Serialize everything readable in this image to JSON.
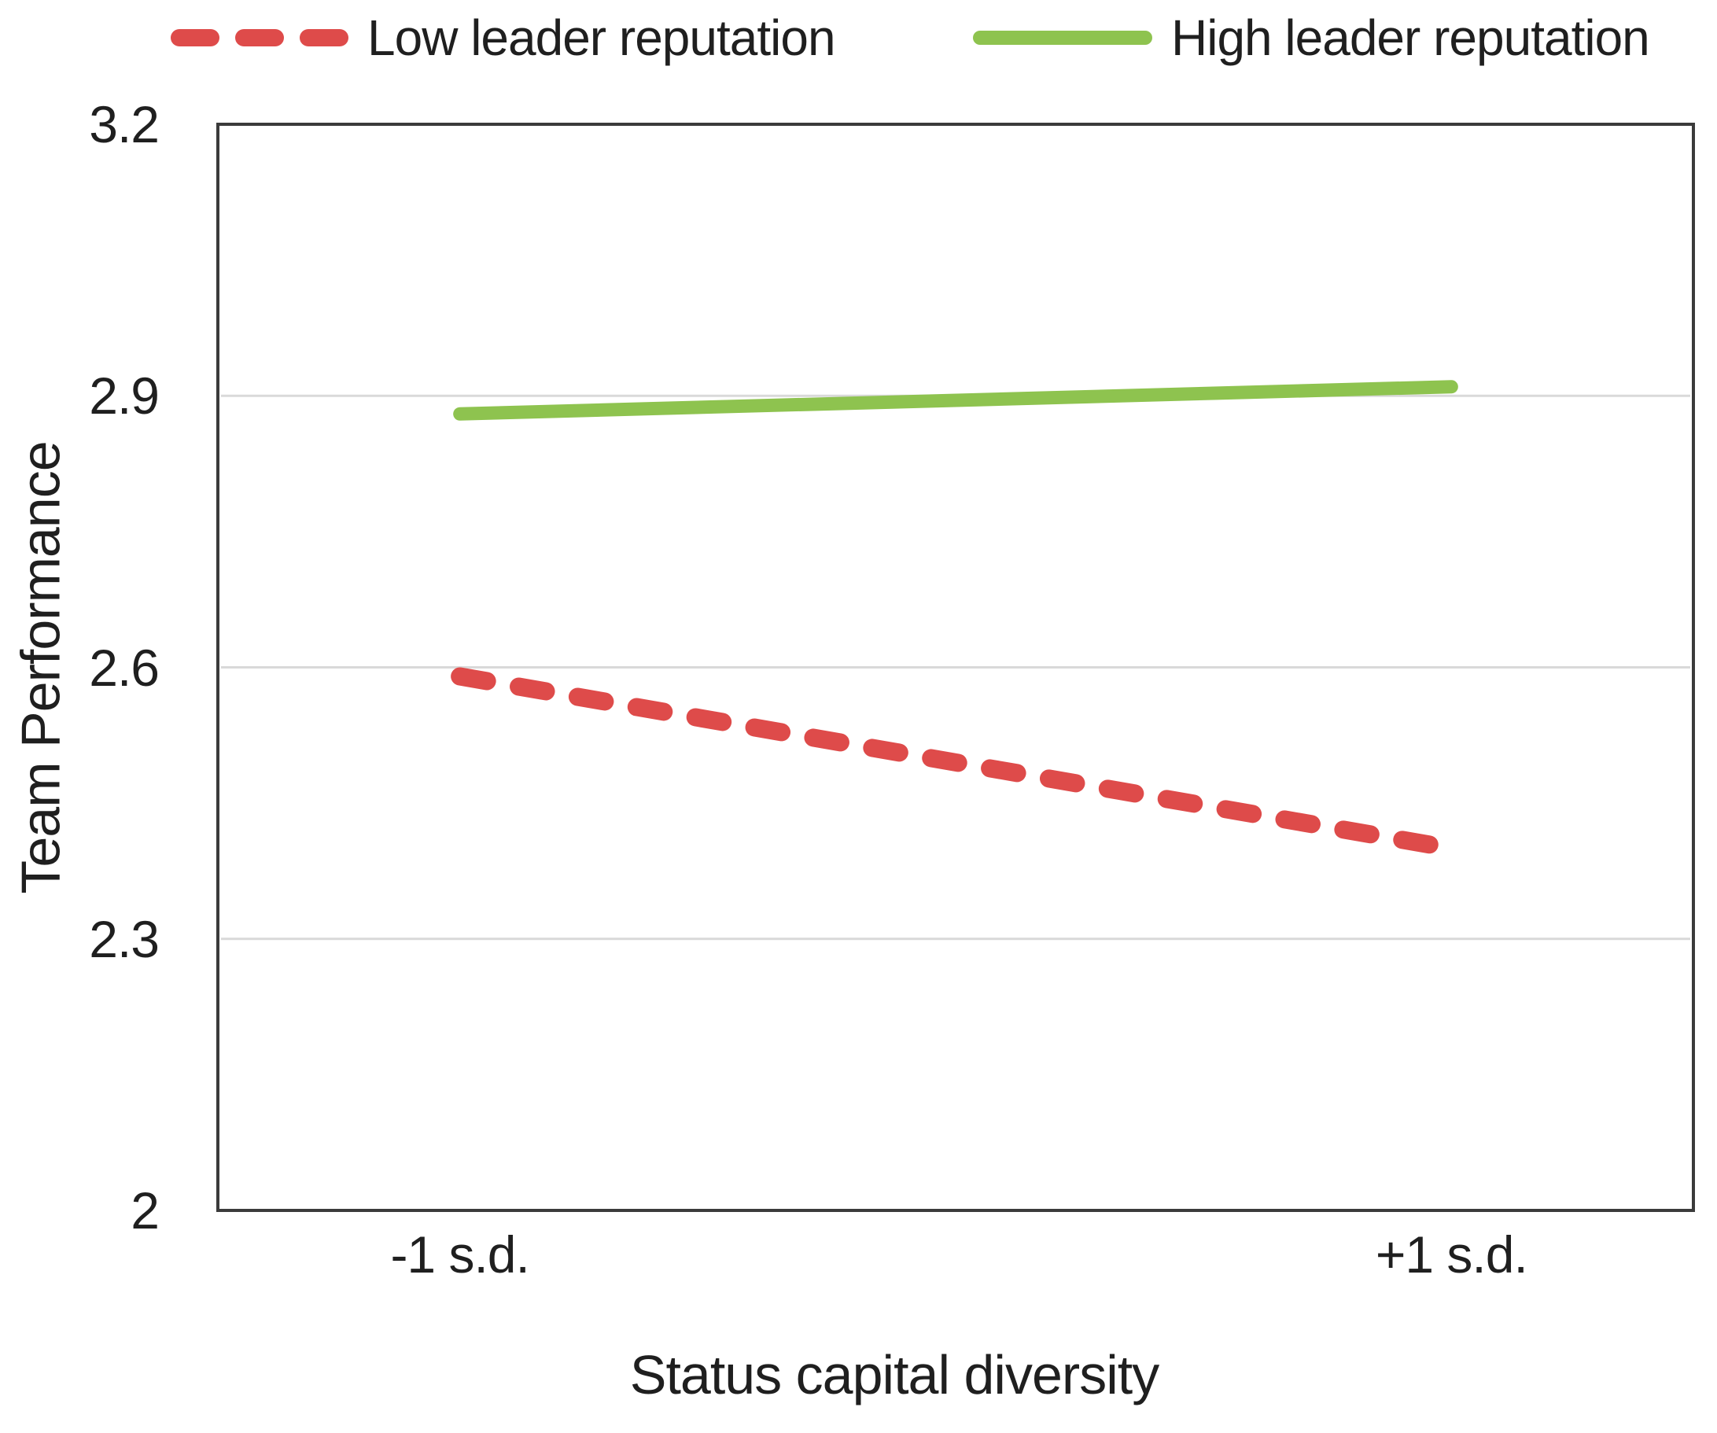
{
  "chart_data": {
    "type": "line",
    "title": "",
    "categories": [
      "-1 s.d.",
      "+1 s.d."
    ],
    "series": [
      {
        "name": "Low leader reputation",
        "values": [
          2.59,
          2.4
        ],
        "color": "#DE4B4A",
        "line_style": "dashed"
      },
      {
        "name": "High leader reputation",
        "values": [
          2.88,
          2.91
        ],
        "color": "#8EC34F",
        "line_style": "solid"
      }
    ],
    "xlabel": "Status capital diversity",
    "ylabel": "Team Performance",
    "ylim": [
      2,
      3.2
    ],
    "yticks": [
      2,
      2.3,
      2.6,
      2.9,
      3.2
    ],
    "ytick_labels": [
      "2",
      "2.3",
      "2.6",
      "2.9",
      "3.2"
    ],
    "gridline_values": [
      2.3,
      2.6,
      2.9
    ],
    "legend_position": "top",
    "grid_on": true,
    "colors": {
      "grid": "#D9D9D9",
      "axis_border": "#3B3B3B",
      "text": "#1F1F1F",
      "background": "#FFFFFF"
    }
  }
}
